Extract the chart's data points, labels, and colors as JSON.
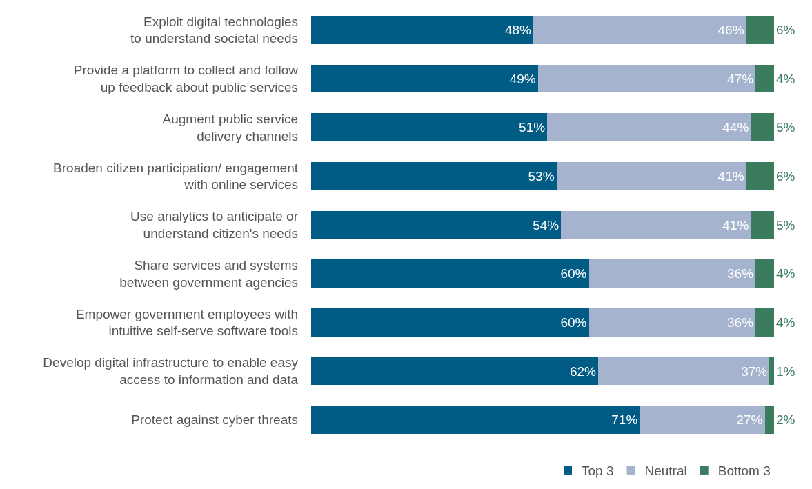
{
  "chart_data": {
    "type": "bar",
    "orientation": "horizontal",
    "stacked": true,
    "categories": [
      "Exploit digital technologies\nto understand societal needs",
      "Provide a platform to collect and follow\nup feedback about public services",
      "Augment public service\ndelivery channels",
      "Broaden citizen participation/ engagement\nwith online services",
      "Use analytics to anticipate or\nunderstand citizen's needs",
      "Share services and systems\nbetween government agencies",
      "Empower government employees with\nintuitive self-serve software tools",
      "Develop digital infrastructure to enable easy\naccess to information and data",
      "Protect against cyber threats"
    ],
    "series": [
      {
        "name": "Top 3",
        "color": "#005b85",
        "values": [
          48,
          49,
          51,
          53,
          54,
          60,
          60,
          62,
          71
        ],
        "value_labels": [
          "48%",
          "49%",
          "51%",
          "53%",
          "54%",
          "60%",
          "60%",
          "62%",
          "71%"
        ]
      },
      {
        "name": "Neutral",
        "color": "#a5b3ce",
        "values": [
          46,
          47,
          44,
          41,
          41,
          36,
          36,
          37,
          27
        ],
        "value_labels": [
          "46%",
          "47%",
          "44%",
          "41%",
          "41%",
          "36%",
          "36%",
          "37%",
          "27%"
        ]
      },
      {
        "name": "Bottom 3",
        "color": "#3b7b5e",
        "values": [
          6,
          4,
          5,
          6,
          5,
          4,
          4,
          1,
          2
        ],
        "value_labels": [
          "6%",
          "4%",
          "5%",
          "6%",
          "5%",
          "4%",
          "4%",
          "1%",
          "2%"
        ]
      }
    ],
    "xlim": [
      0,
      100
    ],
    "tick_labels": "y",
    "legend": "bottom right"
  }
}
